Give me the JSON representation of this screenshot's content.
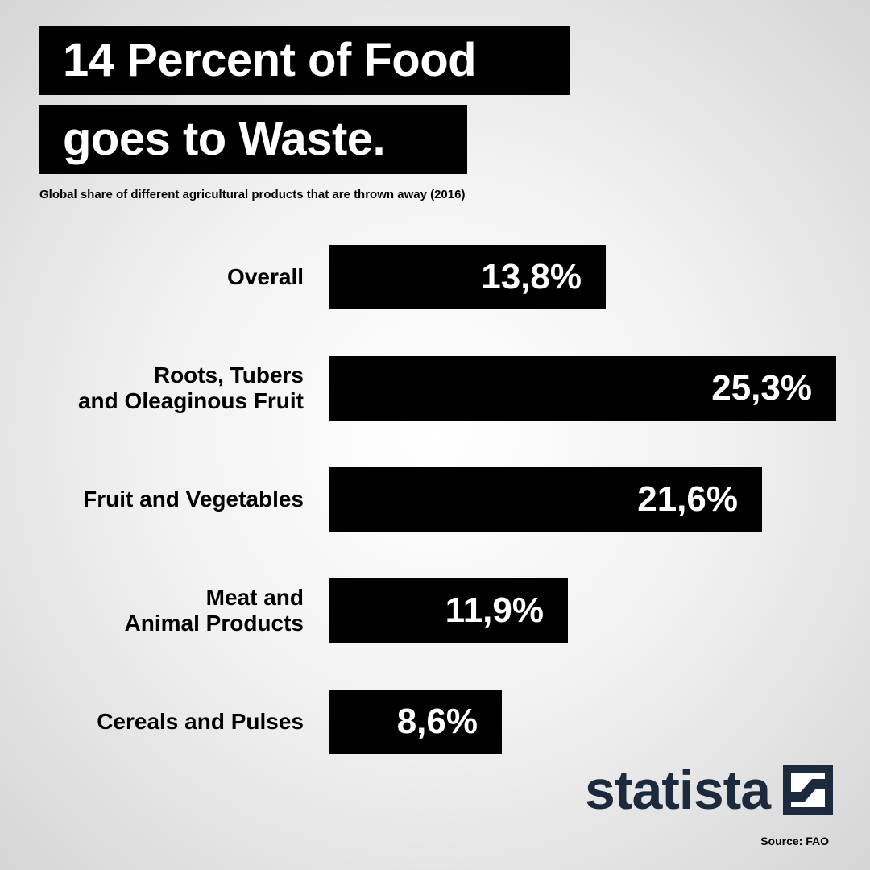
{
  "header": {
    "title_line1": "14 Percent of Food",
    "title_line2": "goes to Waste.",
    "subtitle": "Global share of different agricultural products that are thrown away (2016)"
  },
  "chart_data": {
    "type": "bar",
    "orientation": "horizontal",
    "title": "14 Percent of Food goes to Waste.",
    "subtitle": "Global share of different agricultural products that are thrown away (2016)",
    "categories": [
      "Overall",
      "Roots, Tubers and Oleaginous Fruit",
      "Fruit and Vegetables",
      "Meat and Animal Products",
      "Cereals and Pulses"
    ],
    "category_lines": [
      [
        "Overall"
      ],
      [
        "Roots, Tubers",
        "and Oleaginous Fruit"
      ],
      [
        "Fruit and Vegetables"
      ],
      [
        "Meat and",
        "Animal Products"
      ],
      [
        "Cereals and Pulses"
      ]
    ],
    "values": [
      13.8,
      25.3,
      21.6,
      11.9,
      8.6
    ],
    "value_labels": [
      "13,8%",
      "25,3%",
      "21,6%",
      "11,9%",
      "8,6%"
    ],
    "unit": "%",
    "bar_color": "#000000",
    "value_label_color": "#ffffff",
    "grid": false,
    "legend": "none"
  },
  "branding": {
    "logo_text": "statista",
    "logo_icon": "statista-mark-icon",
    "logo_color": "#1b2a3d"
  },
  "footer": {
    "source": "Source: FAO"
  }
}
